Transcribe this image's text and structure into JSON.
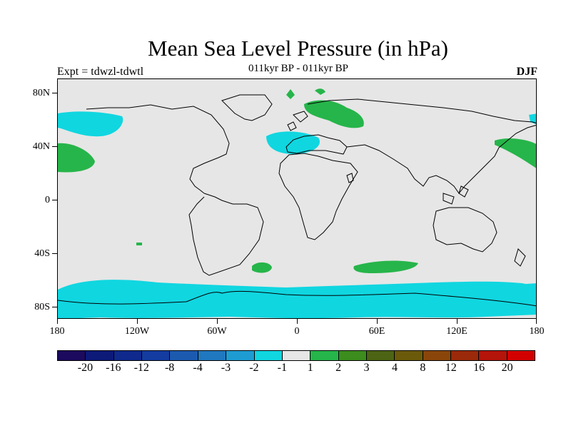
{
  "title": "Mean Sea Level Pressure (in hPa)",
  "subtitle": "011kyr BP - 011kyr BP",
  "experiment": "Expt = tdwzl-tdwtl",
  "season": "DJF",
  "latitude_labels": [
    "80N",
    "40N",
    "0",
    "40S",
    "80S"
  ],
  "longitude_labels": [
    "180",
    "120W",
    "60W",
    "0",
    "60E",
    "120E",
    "180"
  ],
  "colorbar": {
    "colors": [
      "#1c0a5e",
      "#0d1a78",
      "#0f2a8c",
      "#143ca0",
      "#1c5aaf",
      "#2078c0",
      "#1e9cd2",
      "#10d6e0",
      "#e6e6e6",
      "#26b54a",
      "#3c8c1e",
      "#4c6414",
      "#6b5a0a",
      "#8a460a",
      "#9a2a0a",
      "#b4140a",
      "#d20000"
    ],
    "labels": [
      "-20",
      "-16",
      "-12",
      "-8",
      "-4",
      "-3",
      "-2",
      "-1",
      "1",
      "2",
      "3",
      "4",
      "8",
      "12",
      "16",
      "20"
    ]
  },
  "colors": {
    "background": "#e6e6e6",
    "negative": "#10d6e0",
    "positive": "#26b54a",
    "coast": "#000000"
  }
}
